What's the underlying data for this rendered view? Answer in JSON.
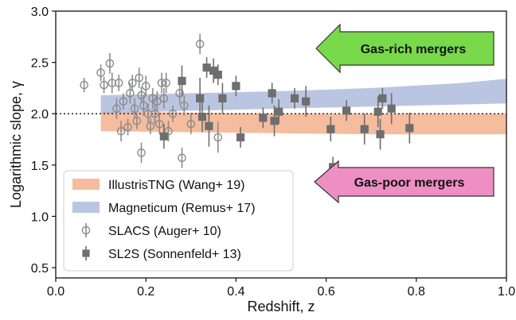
{
  "chart_data": {
    "type": "scatter",
    "xlabel": "Redshift, z",
    "ylabel": "Logarithmic slope, γ",
    "xlim": [
      0.0,
      1.0
    ],
    "ylim": [
      0.4,
      3.0
    ],
    "xticks": [
      0.0,
      0.2,
      0.4,
      0.6,
      0.8,
      1.0
    ],
    "xtick_labels": [
      "0.0",
      "0.2",
      "0.4",
      "0.6",
      "0.8",
      "1.0"
    ],
    "yticks": [
      0.5,
      1.0,
      1.5,
      2.0,
      2.5,
      3.0
    ],
    "ytick_labels": [
      "0.5",
      "1.0",
      "1.5",
      "2.0",
      "2.5",
      "3.0"
    ],
    "reference_line": {
      "y": 2.0,
      "style": "dotted"
    },
    "grid": false,
    "legend_position": "lower-left",
    "bands": [
      {
        "name": "IllustrisTNG (Wang+ 19)",
        "color": "#f2a57c",
        "opacity": 0.75,
        "x": [
          0.1,
          0.3,
          0.5,
          0.7,
          0.9,
          1.0
        ],
        "lower": [
          1.83,
          1.82,
          1.81,
          1.8,
          1.8,
          1.8
        ],
        "upper": [
          2.02,
          2.01,
          2.0,
          2.0,
          2.0,
          2.0
        ]
      },
      {
        "name": "Magneticum (Remus+ 17)",
        "color": "#a9b8d9",
        "opacity": 0.8,
        "x": [
          0.1,
          0.3,
          0.5,
          0.7,
          0.9,
          1.0
        ],
        "lower": [
          2.0,
          2.03,
          2.05,
          2.07,
          2.09,
          2.1
        ],
        "upper": [
          2.18,
          2.2,
          2.22,
          2.25,
          2.3,
          2.34
        ]
      }
    ],
    "series": [
      {
        "name": "SLACS (Auger+ 10)",
        "marker": "open-circle",
        "color": "#8c8c8c",
        "points": [
          {
            "x": 0.063,
            "y": 2.28,
            "err": 0.07
          },
          {
            "x": 0.1,
            "y": 2.4,
            "err": 0.08
          },
          {
            "x": 0.107,
            "y": 2.28,
            "err": 0.08
          },
          {
            "x": 0.12,
            "y": 2.49,
            "err": 0.1
          },
          {
            "x": 0.125,
            "y": 2.3,
            "err": 0.1
          },
          {
            "x": 0.135,
            "y": 2.05,
            "err": 0.1
          },
          {
            "x": 0.14,
            "y": 2.3,
            "err": 0.08
          },
          {
            "x": 0.145,
            "y": 1.83,
            "err": 0.1
          },
          {
            "x": 0.15,
            "y": 2.12,
            "err": 0.08
          },
          {
            "x": 0.16,
            "y": 1.87,
            "err": 0.08
          },
          {
            "x": 0.165,
            "y": 2.2,
            "err": 0.1
          },
          {
            "x": 0.17,
            "y": 2.3,
            "err": 0.08
          },
          {
            "x": 0.175,
            "y": 2.05,
            "err": 0.1
          },
          {
            "x": 0.18,
            "y": 1.93,
            "err": 0.08
          },
          {
            "x": 0.185,
            "y": 2.35,
            "err": 0.1
          },
          {
            "x": 0.19,
            "y": 2.18,
            "err": 0.08
          },
          {
            "x": 0.19,
            "y": 1.62,
            "err": 0.1
          },
          {
            "x": 0.195,
            "y": 2.08,
            "err": 0.1
          },
          {
            "x": 0.2,
            "y": 2.27,
            "err": 0.1
          },
          {
            "x": 0.205,
            "y": 2.0,
            "err": 0.1
          },
          {
            "x": 0.21,
            "y": 1.88,
            "err": 0.08
          },
          {
            "x": 0.215,
            "y": 2.15,
            "err": 0.1
          },
          {
            "x": 0.22,
            "y": 2.0,
            "err": 0.1
          },
          {
            "x": 0.225,
            "y": 2.12,
            "err": 0.1
          },
          {
            "x": 0.23,
            "y": 1.9,
            "err": 0.1
          },
          {
            "x": 0.235,
            "y": 2.3,
            "err": 0.1
          },
          {
            "x": 0.24,
            "y": 2.15,
            "err": 0.1
          },
          {
            "x": 0.245,
            "y": 2.3,
            "err": 0.1
          },
          {
            "x": 0.25,
            "y": 1.83,
            "err": 0.1
          },
          {
            "x": 0.26,
            "y": 2.0,
            "err": 0.08
          },
          {
            "x": 0.275,
            "y": 2.2,
            "err": 0.1
          },
          {
            "x": 0.28,
            "y": 1.57,
            "err": 0.1
          },
          {
            "x": 0.285,
            "y": 2.08,
            "err": 0.1
          },
          {
            "x": 0.3,
            "y": 1.9,
            "err": 0.1
          },
          {
            "x": 0.32,
            "y": 2.68,
            "err": 0.1
          },
          {
            "x": 0.36,
            "y": 1.77,
            "err": 0.15
          }
        ]
      },
      {
        "name": "SL2S (Sonnenfeld+ 13)",
        "marker": "filled-square",
        "color": "#6e6e6e",
        "points": [
          {
            "x": 0.24,
            "y": 1.78,
            "err": 0.12
          },
          {
            "x": 0.28,
            "y": 2.32,
            "err": 0.15
          },
          {
            "x": 0.32,
            "y": 2.15,
            "err": 0.2
          },
          {
            "x": 0.325,
            "y": 1.97,
            "err": 0.15
          },
          {
            "x": 0.335,
            "y": 2.45,
            "err": 0.1
          },
          {
            "x": 0.34,
            "y": 1.88,
            "err": 0.2
          },
          {
            "x": 0.35,
            "y": 2.42,
            "err": 0.12
          },
          {
            "x": 0.36,
            "y": 2.38,
            "err": 0.1
          },
          {
            "x": 0.37,
            "y": 2.15,
            "err": 0.15
          },
          {
            "x": 0.4,
            "y": 2.27,
            "err": 0.1
          },
          {
            "x": 0.41,
            "y": 1.77,
            "err": 0.1
          },
          {
            "x": 0.46,
            "y": 1.96,
            "err": 0.1
          },
          {
            "x": 0.48,
            "y": 2.2,
            "err": 0.1
          },
          {
            "x": 0.485,
            "y": 1.93,
            "err": 0.15
          },
          {
            "x": 0.495,
            "y": 2.02,
            "err": 0.12
          },
          {
            "x": 0.53,
            "y": 2.15,
            "err": 0.1
          },
          {
            "x": 0.555,
            "y": 2.12,
            "err": 0.15
          },
          {
            "x": 0.61,
            "y": 1.85,
            "err": 0.12
          },
          {
            "x": 0.615,
            "y": 1.48,
            "err": 0.1
          },
          {
            "x": 0.645,
            "y": 2.03,
            "err": 0.1
          },
          {
            "x": 0.685,
            "y": 1.85,
            "err": 0.15
          },
          {
            "x": 0.715,
            "y": 2.02,
            "err": 0.15
          },
          {
            "x": 0.72,
            "y": 1.8,
            "err": 0.15
          },
          {
            "x": 0.725,
            "y": 2.15,
            "err": 0.1
          },
          {
            "x": 0.745,
            "y": 2.05,
            "err": 0.15
          },
          {
            "x": 0.785,
            "y": 1.86,
            "err": 0.15
          }
        ]
      }
    ],
    "annotations": [
      {
        "text": "Gas-rich mergers",
        "type": "arrow-left",
        "color": "#78d94a"
      },
      {
        "text": "Gas-poor mergers",
        "type": "arrow-left",
        "color": "#ee8fc4"
      }
    ]
  }
}
